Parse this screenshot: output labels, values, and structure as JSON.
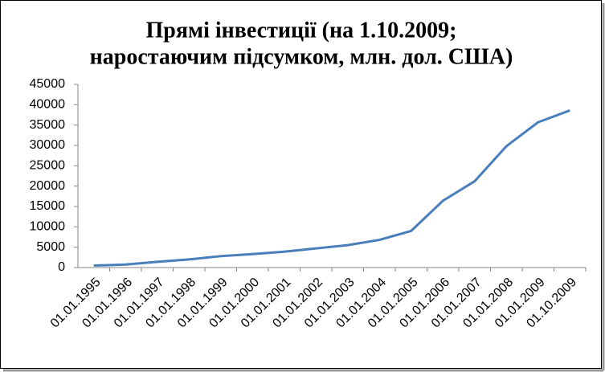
{
  "chart_data": {
    "type": "line",
    "title": [
      "Прямі інвестиції (на 1.10.2009;",
      "наростаючим підсумком, млн. дол. США)"
    ],
    "categories": [
      "01.01.1995",
      "01.01.1996",
      "01.01.1997",
      "01.01.1998",
      "01.01.1999",
      "01.01.2000",
      "01.01.2001",
      "01.01.2002",
      "01.01.2003",
      "01.01.2004",
      "01.01.2005",
      "01.01.2006",
      "01.01.2007",
      "01.01.2008",
      "01.01.2009",
      "01.10.2009"
    ],
    "values": [
      484,
      750,
      1400,
      2000,
      2800,
      3300,
      3900,
      4700,
      5500,
      6800,
      9000,
      16400,
      21200,
      29800,
      35700,
      38600
    ],
    "color": "#4a7ebb",
    "ylim": [
      0,
      45000
    ],
    "yticks": [
      0,
      5000,
      10000,
      15000,
      20000,
      25000,
      30000,
      35000,
      40000,
      45000
    ],
    "grid": false
  }
}
